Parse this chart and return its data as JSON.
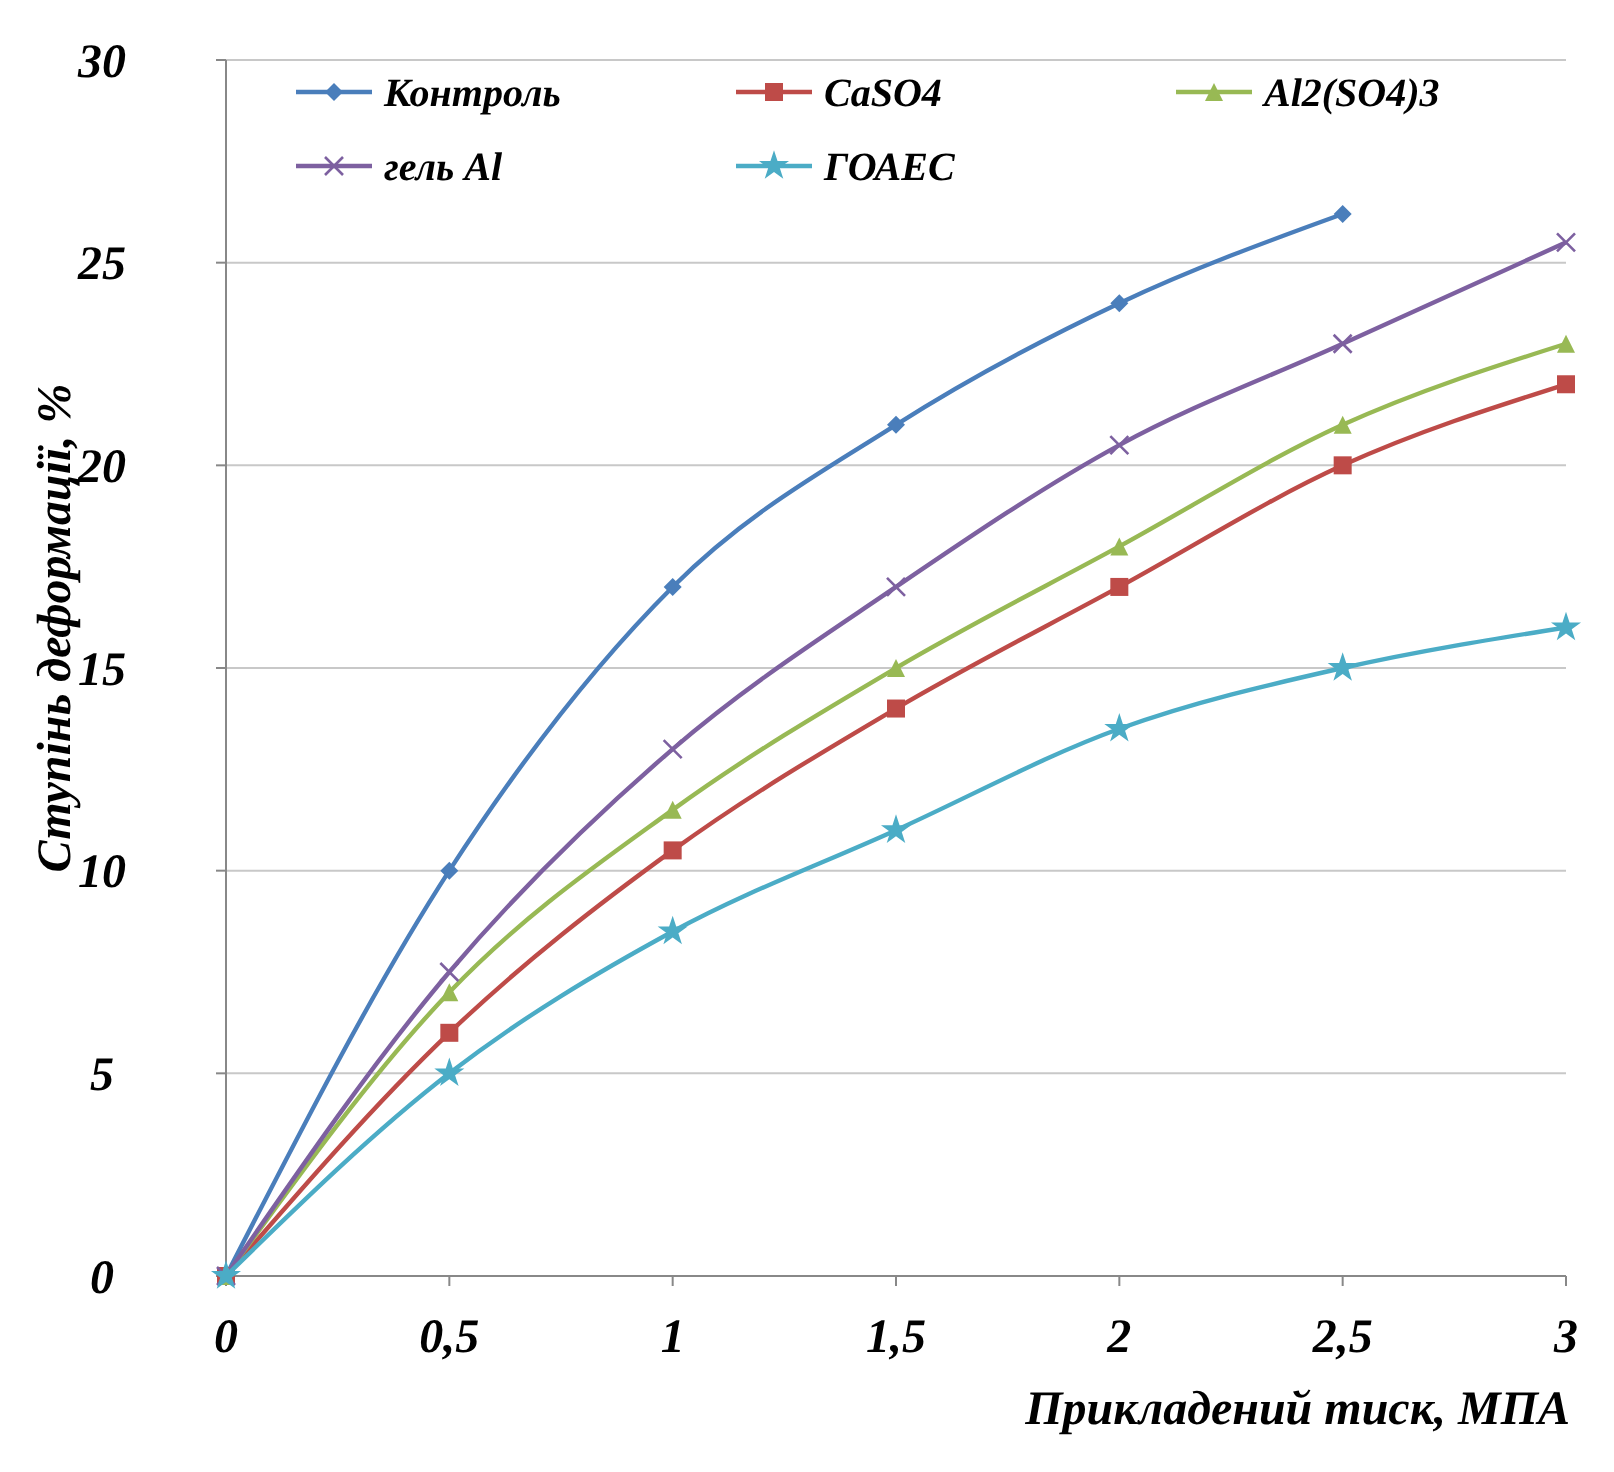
{
  "chart_data": {
    "type": "line",
    "xlabel": "Прикладений тиск, МПА",
    "ylabel": "Ступінь деформації, %",
    "x": [
      0,
      0.5,
      1,
      1.5,
      2,
      2.5,
      3
    ],
    "xlim": [
      0,
      3
    ],
    "xticks": [
      0,
      {
        "value": 0.5,
        "label": "0,5"
      },
      1,
      {
        "value": 1.5,
        "label": "1,5"
      },
      2,
      {
        "value": 2.5,
        "label": "2,5"
      },
      3
    ],
    "ylim": [
      0,
      30
    ],
    "yticks": [
      0,
      5,
      10,
      15,
      20,
      25,
      30
    ],
    "grid": "y",
    "legend": "top",
    "series": [
      {
        "name": "Контроль",
        "color": "#4a7ebb",
        "marker": "diamond",
        "values": [
          0,
          10,
          17,
          21,
          24,
          26.2,
          null
        ]
      },
      {
        "name": "CaSO4",
        "color": "#be4b48",
        "marker": "square",
        "values": [
          0,
          6,
          10.5,
          14,
          17,
          20,
          22
        ]
      },
      {
        "name": "Al2(SO4)3",
        "color": "#98b954",
        "marker": "triangle",
        "values": [
          0,
          7,
          11.5,
          15,
          18,
          21,
          23
        ]
      },
      {
        "name": "гель Al",
        "color": "#7d60a0",
        "marker": "cross",
        "values": [
          0,
          7.5,
          13,
          17,
          20.5,
          23,
          25.5
        ]
      },
      {
        "name": "ГОАЕС",
        "color": "#4bacc6",
        "marker": "star",
        "values": [
          0,
          5,
          8.5,
          11,
          13.5,
          15,
          16
        ]
      }
    ]
  }
}
